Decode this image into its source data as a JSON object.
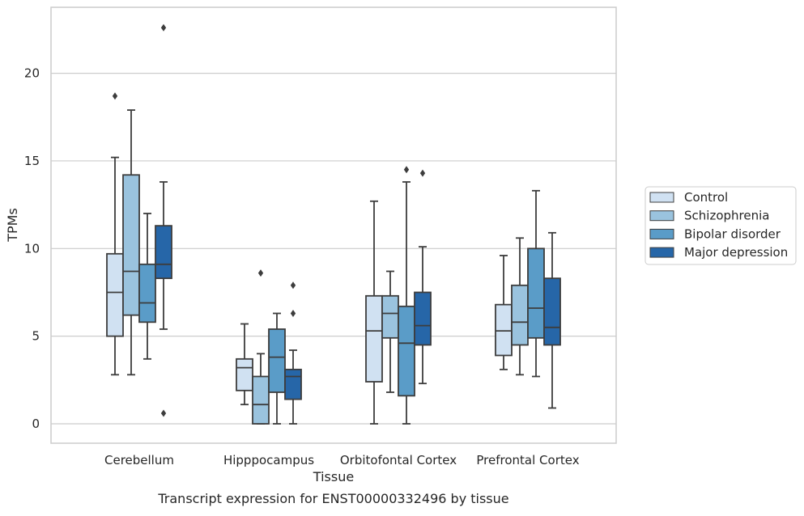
{
  "chart_data": {
    "type": "box",
    "title": "",
    "caption": "Transcript expression for ENST00000332496 by tissue",
    "xlabel": "Tissue",
    "ylabel": "TPMs",
    "ylim": [
      -1.1,
      23.4
    ],
    "yticks": [
      0,
      5,
      10,
      15,
      20
    ],
    "grid": "horizontal",
    "legend_position": "right",
    "categories": [
      "Cerebellum",
      "Hipppocampus",
      "Orbitofontal Cortex",
      "Prefrontal Cortex"
    ],
    "series": [
      {
        "name": "Control",
        "color": "#d0e1f2",
        "boxes": [
          {
            "whislo": 2.8,
            "q1": 5.0,
            "med": 7.5,
            "q3": 9.7,
            "whishi": 15.2,
            "fliers": [
              18.7
            ]
          },
          {
            "whislo": 1.1,
            "q1": 1.9,
            "med": 3.2,
            "q3": 3.7,
            "whishi": 5.7,
            "fliers": []
          },
          {
            "whislo": 0.0,
            "q1": 2.4,
            "med": 5.3,
            "q3": 7.3,
            "whishi": 12.7,
            "fliers": []
          },
          {
            "whislo": 3.1,
            "q1": 3.9,
            "med": 5.3,
            "q3": 6.8,
            "whishi": 9.6,
            "fliers": []
          }
        ]
      },
      {
        "name": "Schizophrenia",
        "color": "#9ac3de",
        "boxes": [
          {
            "whislo": 2.8,
            "q1": 6.2,
            "med": 8.7,
            "q3": 14.2,
            "whishi": 17.9,
            "fliers": []
          },
          {
            "whislo": 0.0,
            "q1": 0.0,
            "med": 1.1,
            "q3": 2.7,
            "whishi": 4.0,
            "fliers": [
              8.6
            ]
          },
          {
            "whislo": 1.8,
            "q1": 4.9,
            "med": 6.3,
            "q3": 7.3,
            "whishi": 8.7,
            "fliers": []
          },
          {
            "whislo": 2.8,
            "q1": 4.5,
            "med": 5.8,
            "q3": 7.9,
            "whishi": 10.6,
            "fliers": []
          }
        ]
      },
      {
        "name": "Bipolar disorder",
        "color": "#5a9cc8",
        "boxes": [
          {
            "whislo": 3.7,
            "q1": 5.8,
            "med": 6.9,
            "q3": 9.1,
            "whishi": 12.0,
            "fliers": []
          },
          {
            "whislo": 0.0,
            "q1": 1.8,
            "med": 3.8,
            "q3": 5.4,
            "whishi": 6.3,
            "fliers": []
          },
          {
            "whislo": 0.0,
            "q1": 1.6,
            "med": 4.6,
            "q3": 6.7,
            "whishi": 13.8,
            "fliers": [
              14.5
            ]
          },
          {
            "whislo": 2.7,
            "q1": 4.9,
            "med": 6.6,
            "q3": 10.0,
            "whishi": 13.3,
            "fliers": []
          }
        ]
      },
      {
        "name": "Major depression",
        "color": "#2666a8",
        "boxes": [
          {
            "whislo": 5.4,
            "q1": 8.3,
            "med": 9.1,
            "q3": 11.3,
            "whishi": 13.8,
            "fliers": [
              22.6,
              0.6
            ]
          },
          {
            "whislo": 0.0,
            "q1": 1.4,
            "med": 2.7,
            "q3": 3.1,
            "whishi": 4.2,
            "fliers": [
              7.9,
              6.3
            ]
          },
          {
            "whislo": 2.3,
            "q1": 4.5,
            "med": 5.6,
            "q3": 7.5,
            "whishi": 10.1,
            "fliers": [
              14.3
            ]
          },
          {
            "whislo": 0.9,
            "q1": 4.5,
            "med": 5.5,
            "q3": 8.3,
            "whishi": 10.9,
            "fliers": []
          }
        ]
      }
    ]
  }
}
